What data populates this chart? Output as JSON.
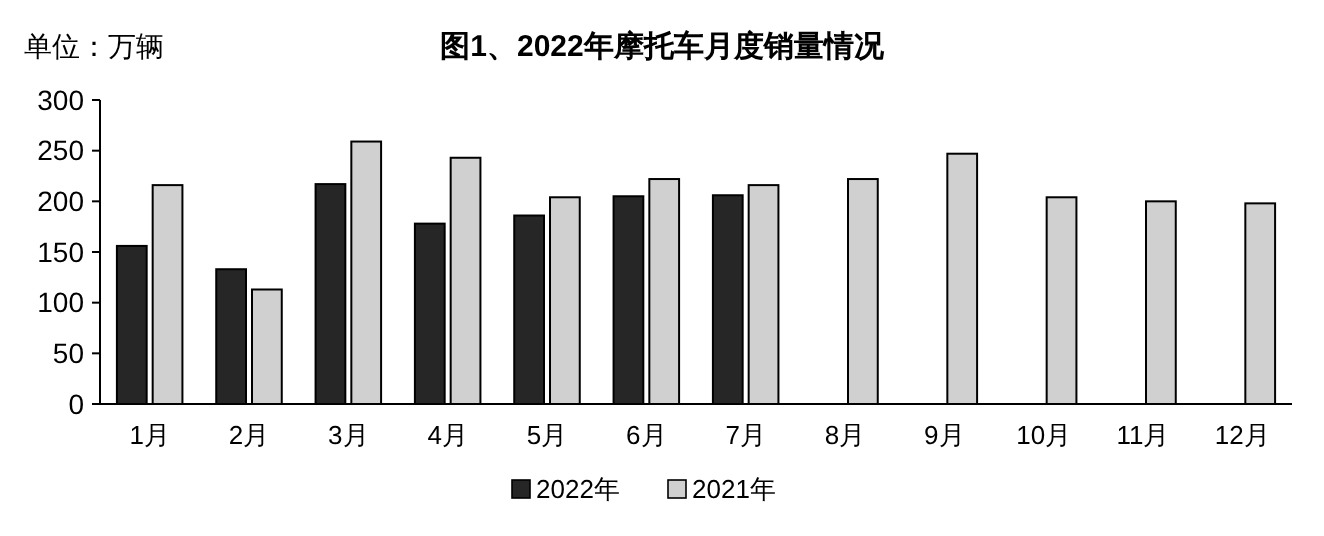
{
  "chart_data": {
    "type": "bar",
    "title": "图1、2022年摩托车月度销量情况",
    "annotations": [
      "单位：万辆"
    ],
    "categories": [
      "1月",
      "2月",
      "3月",
      "4月",
      "5月",
      "6月",
      "7月",
      "8月",
      "9月",
      "10月",
      "11月",
      "12月"
    ],
    "series": [
      {
        "name": "2022年",
        "color": "#262626",
        "values": [
          156,
          133,
          217,
          178,
          186,
          205,
          206,
          null,
          null,
          null,
          null,
          null
        ]
      },
      {
        "name": "2021年",
        "color": "#d0d0d0",
        "values": [
          216,
          113,
          259,
          243,
          204,
          222,
          216,
          222,
          247,
          204,
          200,
          198
        ]
      }
    ],
    "ylim": [
      0,
      300
    ],
    "yticks": [
      0,
      50,
      100,
      150,
      200,
      250,
      300
    ],
    "grid": false,
    "legend": "bottom"
  }
}
